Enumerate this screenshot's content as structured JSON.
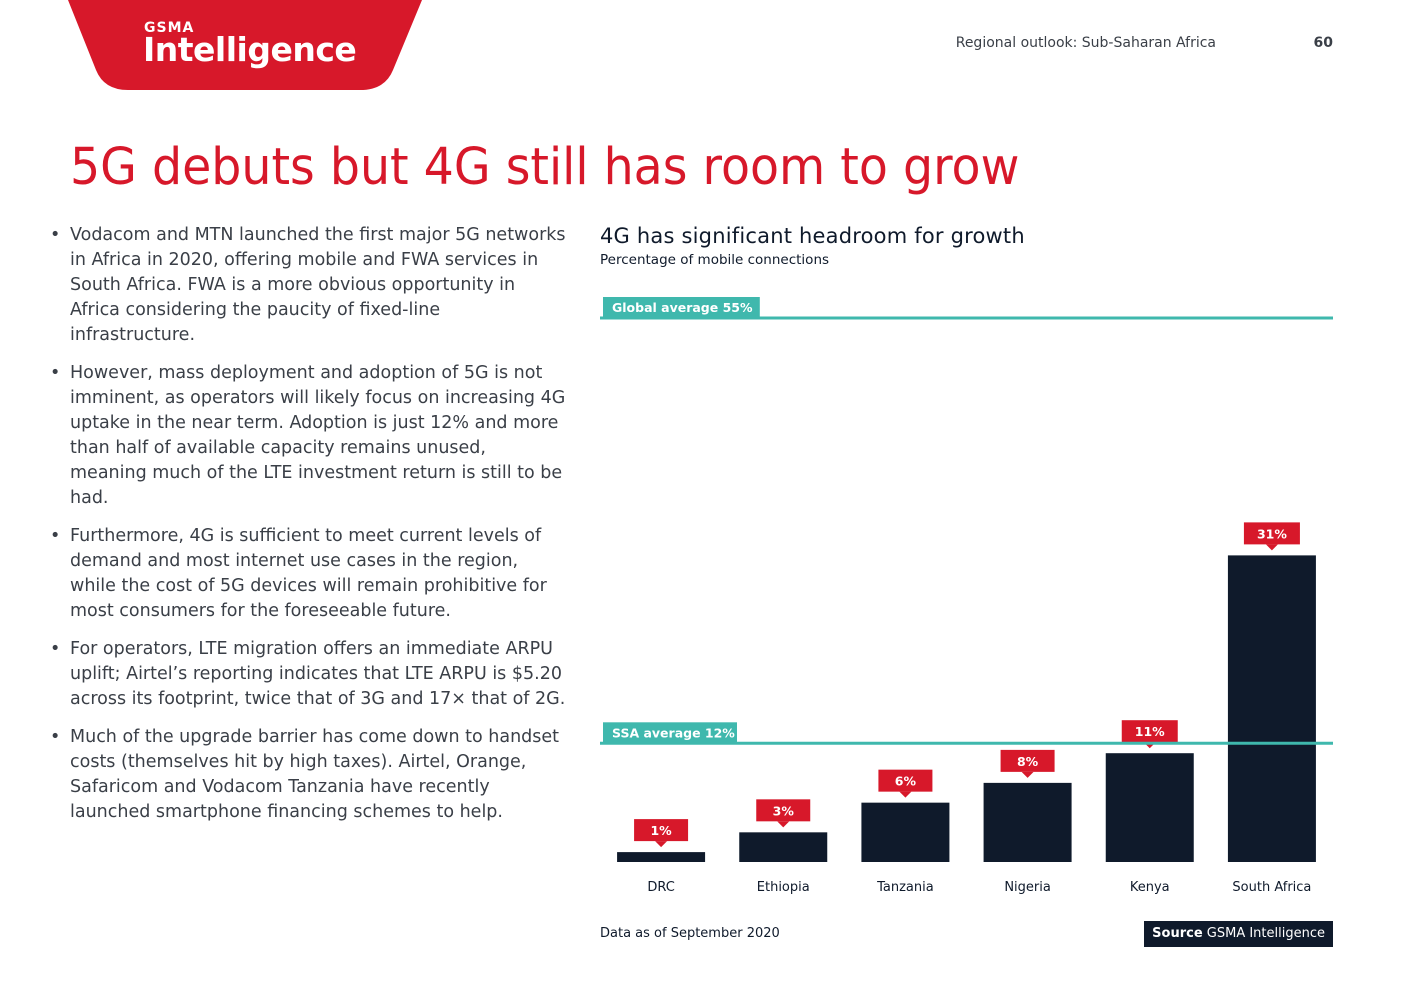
{
  "header": {
    "brand_small": "GSMA",
    "brand_big": "Intelligence",
    "section": "Regional outlook: Sub-Saharan Africa",
    "page_number": "60"
  },
  "title": "5G debuts but 4G still has room to grow",
  "bullets": [
    "Vodacom and MTN launched the first major 5G networks in Africa in 2020, offering mobile and FWA services in South Africa. FWA is a more obvious opportunity in Africa considering the paucity of fixed-line infrastructure.",
    "However, mass deployment and adoption of 5G is not imminent, as operators will likely focus on increasing 4G uptake in the near term. Adoption is just 12% and more than half of available capacity remains unused, meaning much of the LTE investment return is still to be had.",
    "Furthermore, 4G is sufficient to meet current levels of demand and most internet use cases in the region, while the cost of 5G devices will remain prohibitive for most consumers for the foreseeable future.",
    "For operators, LTE migration offers an immediate ARPU uplift; Airtel’s reporting indicates that LTE ARPU is $5.20 across its footprint, twice that of 3G and 17× that of 2G.",
    "Much of the upgrade barrier has come down to handset costs (themselves hit by high taxes). Airtel, Orange, Safaricom and Vodacom Tanzania have recently launched smartphone financing schemes to help."
  ],
  "chart_data": {
    "type": "bar",
    "title": "4G has significant headroom for growth",
    "subtitle": "Percentage of mobile connections",
    "categories": [
      "DRC",
      "Ethiopia",
      "Tanzania",
      "Nigeria",
      "Kenya",
      "South Africa"
    ],
    "values": [
      1,
      3,
      6,
      8,
      11,
      31
    ],
    "value_labels": [
      "1%",
      "3%",
      "6%",
      "8%",
      "11%",
      "31%"
    ],
    "ylim": [
      0,
      55
    ],
    "reference_lines": [
      {
        "label": "Global average 55%",
        "value": 55
      },
      {
        "label": "SSA average 12%",
        "value": 12
      }
    ]
  },
  "footnote": "Data as of September 2020",
  "source": {
    "label": "Source",
    "text": "GSMA Intelligence"
  },
  "colors": {
    "brand_red": "#d7182a",
    "bar_navy": "#0f1a2b",
    "teal": "#3fb8ad",
    "text": "#3a3f47"
  }
}
